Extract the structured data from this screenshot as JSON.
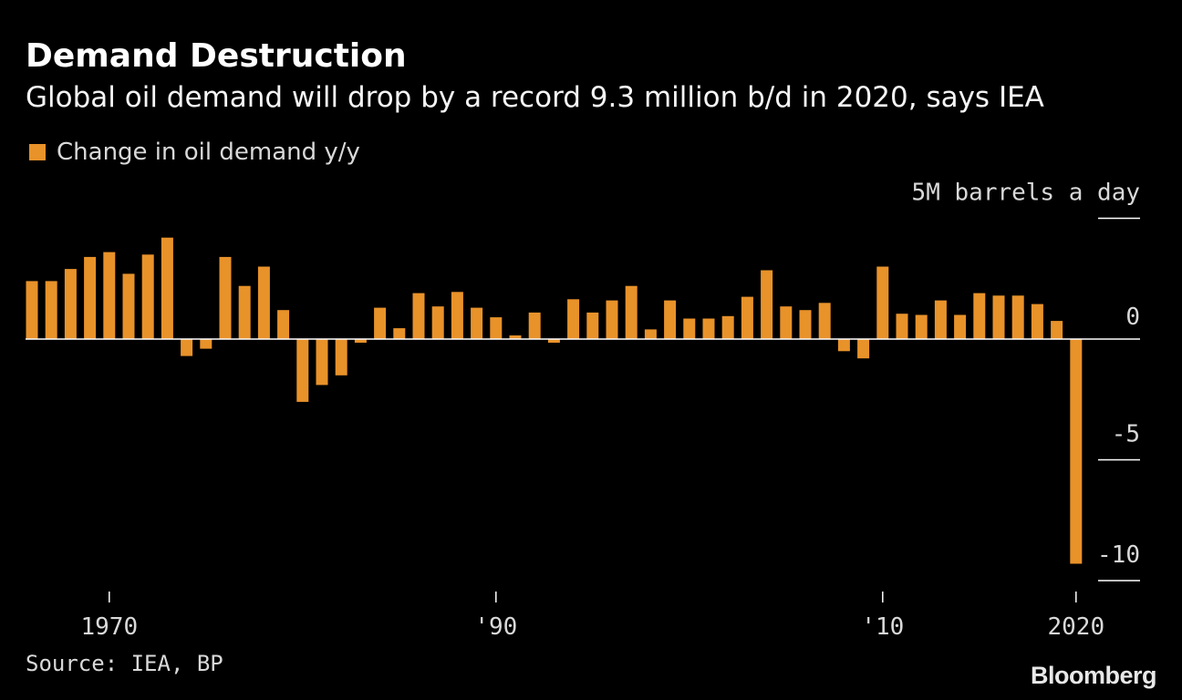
{
  "title": "Demand Destruction",
  "subtitle": "Global oil demand will drop by a record 9.3 million b/d in 2020, says IEA",
  "legend": {
    "label": "Change in oil demand y/y",
    "color": "#e8922a"
  },
  "source": "Source: IEA, BP",
  "brand": "Bloomberg",
  "colors": {
    "bar": "#e8922a",
    "background": "#000000",
    "axis": "#ffffff"
  },
  "chart_data": {
    "type": "bar",
    "title": "Demand Destruction",
    "subtitle": "Global oil demand will drop by a record 9.3 million b/d in 2020, says IEA",
    "unit": "5M barrels a day",
    "ylim": [
      -10,
      5
    ],
    "yticks": [
      {
        "value": 5,
        "label": "5M barrels a day"
      },
      {
        "value": 0,
        "label": "0"
      },
      {
        "value": -5,
        "label": "-5"
      },
      {
        "value": -10,
        "label": "-10"
      }
    ],
    "xticks": [
      {
        "year": 1970,
        "label": "1970"
      },
      {
        "year": 1990,
        "label": "'90"
      },
      {
        "year": 2010,
        "label": "'10"
      },
      {
        "year": 2020,
        "label": "2020"
      }
    ],
    "grid": false,
    "legend_position": "top-left",
    "series": [
      {
        "name": "Change in oil demand y/y",
        "x": [
          1966,
          1967,
          1968,
          1969,
          1970,
          1971,
          1972,
          1973,
          1974,
          1975,
          1976,
          1977,
          1978,
          1979,
          1980,
          1981,
          1982,
          1983,
          1984,
          1985,
          1986,
          1987,
          1988,
          1989,
          1990,
          1991,
          1992,
          1993,
          1994,
          1995,
          1996,
          1997,
          1998,
          1999,
          2000,
          2001,
          2002,
          2003,
          2004,
          2005,
          2006,
          2007,
          2008,
          2009,
          2010,
          2011,
          2012,
          2013,
          2014,
          2015,
          2016,
          2017,
          2018,
          2019,
          2020
        ],
        "values": [
          2.4,
          2.4,
          2.9,
          3.4,
          3.6,
          2.7,
          3.5,
          4.2,
          -0.7,
          -0.4,
          3.4,
          2.2,
          3.0,
          1.2,
          -2.6,
          -1.9,
          -1.5,
          -0.15,
          1.3,
          0.45,
          1.9,
          1.35,
          1.95,
          1.3,
          0.9,
          0.15,
          1.1,
          -0.15,
          1.65,
          1.1,
          1.6,
          2.2,
          0.4,
          1.6,
          0.85,
          0.85,
          0.95,
          1.75,
          2.85,
          1.35,
          1.2,
          1.5,
          -0.5,
          -0.8,
          3.0,
          1.05,
          1.0,
          1.6,
          1.0,
          1.9,
          1.8,
          1.8,
          1.45,
          0.75,
          -9.3
        ]
      }
    ]
  }
}
